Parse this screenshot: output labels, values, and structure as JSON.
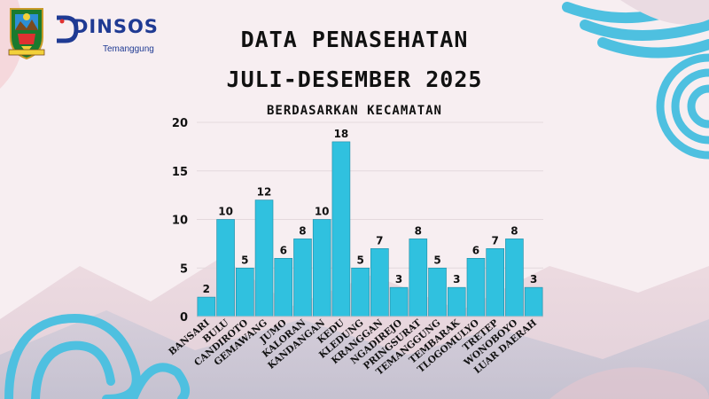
{
  "header": {
    "org_name": "DINSOS",
    "org_sub": "Temanggung",
    "logo": "temanggung-regency-emblem"
  },
  "titles": {
    "line1": "DATA PENASEHATAN",
    "line2": "JULI-DESEMBER 2025",
    "subtitle": "BERDASARKAN KECAMATAN"
  },
  "colors": {
    "bar": "#30c1df",
    "bar_stroke": "#1e8aa3",
    "accent_navy": "#1f3a93",
    "decor_blue": "#4ec0e0",
    "decor_pink": "#f3c9cf"
  },
  "chart_data": {
    "type": "bar",
    "categories": [
      "BANSARI",
      "BULU",
      "CANDIROTO",
      "GEMAWANG",
      "JUMO",
      "KALORAN",
      "KANDANGAN",
      "KEDU",
      "KLEDUNG",
      "KRANGGAN",
      "NGADIREJO",
      "PRINGSURAT",
      "TEMANGGUNG",
      "TEMBARAK",
      "TLOGOMULYO",
      "TRETEP",
      "WONOBOYO",
      "LUAR DAERAH"
    ],
    "values": [
      2,
      10,
      5,
      12,
      6,
      8,
      10,
      18,
      5,
      7,
      3,
      8,
      5,
      3,
      6,
      7,
      8,
      3
    ],
    "title": "DATA PENASEHATAN JULI-DESEMBER 2025",
    "subtitle": "BERDASARKAN KECAMATAN",
    "xlabel": "",
    "ylabel": "",
    "ylim": [
      0,
      20
    ],
    "yticks": [
      0,
      5,
      10,
      15,
      20
    ],
    "grid": true,
    "legend": "none"
  }
}
